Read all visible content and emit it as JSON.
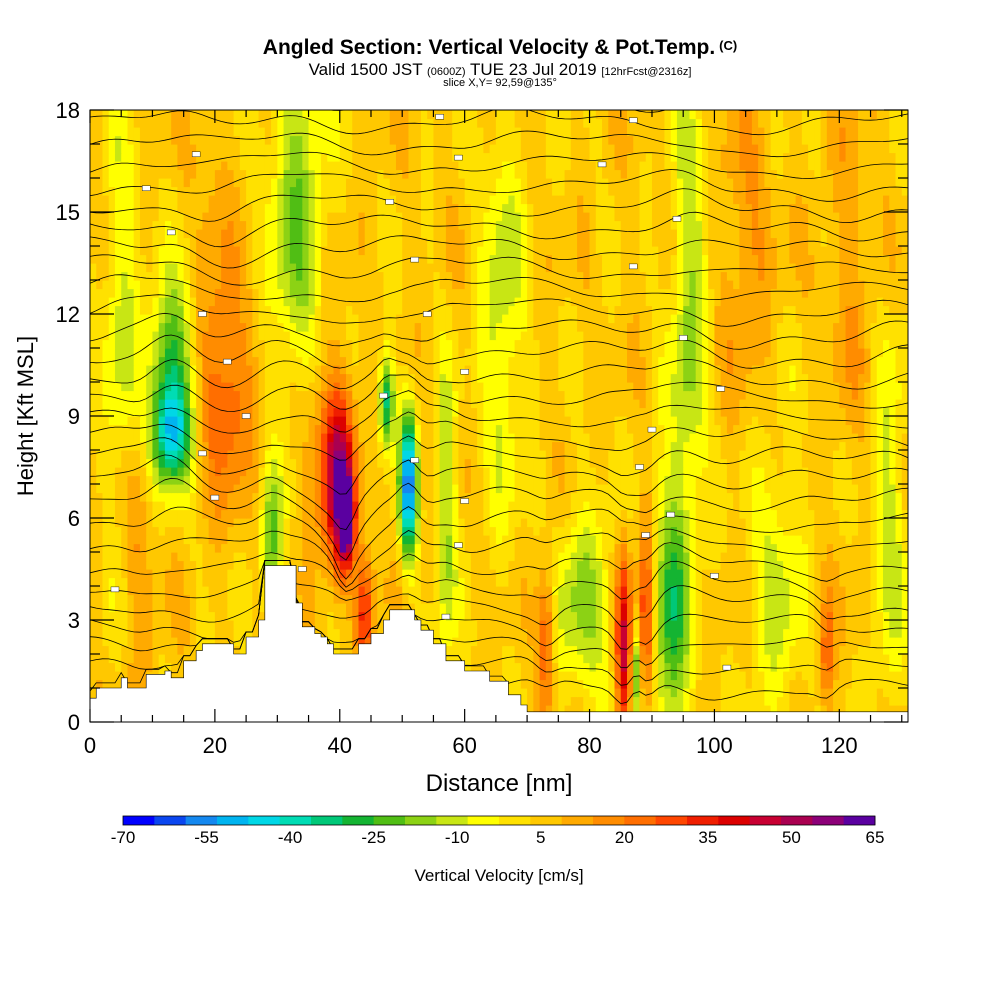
{
  "title": {
    "main": "Angled Section: Vertical Velocity & Pot.Temp.",
    "copyright": "(C)",
    "valid_prefix": "Valid 1500 JST",
    "utc": "(0600Z)",
    "valid_date": "TUE 23 Jul 2019",
    "forecast": "[12hrFcst@2316z]",
    "slice": "slice X,Y= 92,59@135°"
  },
  "colorbar": {
    "label": "Vertical Velocity [cm/s]",
    "ticks": [
      "-70",
      "-55",
      "-40",
      "-25",
      "-10",
      "5",
      "20",
      "35",
      "50",
      "65"
    ],
    "colors": [
      "#0000ff",
      "#0a46f0",
      "#1488f0",
      "#00b4f0",
      "#00d7e6",
      "#00dcb4",
      "#00c878",
      "#14b432",
      "#50be14",
      "#8cd214",
      "#c8e614",
      "#ffff00",
      "#ffe100",
      "#ffc800",
      "#ffaa00",
      "#ff8c00",
      "#ff6e00",
      "#ff4600",
      "#f01e00",
      "#dc0000",
      "#c80032",
      "#aa0050",
      "#8c0078",
      "#5a00a0"
    ]
  },
  "chart_data": {
    "type": "heatmap",
    "x_axis": {
      "label": "Distance [nm]",
      "range": [
        0,
        131
      ],
      "ticks": [
        0,
        20,
        40,
        60,
        80,
        100,
        120
      ]
    },
    "y_axis": {
      "label": "Height [Kft MSL]",
      "range": [
        0,
        18
      ],
      "ticks": [
        0,
        3,
        6,
        9,
        12,
        15,
        18
      ]
    },
    "variable": "Vertical Velocity [cm/s]",
    "value_range": [
      -70,
      65
    ],
    "contour_variable": "Pot.Temp.",
    "background_value": 5,
    "features": [
      {
        "x": 13,
        "y": 10.3,
        "sx": 2.5,
        "sy": 1.8,
        "value": -30
      },
      {
        "x": 13,
        "y": 8.4,
        "sx": 2.2,
        "sy": 1.0,
        "value": -30
      },
      {
        "x": 22,
        "y": 9.5,
        "sx": 3.0,
        "sy": 2.0,
        "value": 25
      },
      {
        "x": 20,
        "y": 14.0,
        "sx": 2.0,
        "sy": 3.5,
        "value": 12
      },
      {
        "x": 33,
        "y": 15.0,
        "sx": 3.0,
        "sy": 4.0,
        "value": -18
      },
      {
        "x": 29,
        "y": 5.2,
        "sx": 1.2,
        "sy": 1.5,
        "value": -22
      },
      {
        "x": 40,
        "y": 6.8,
        "sx": 1.6,
        "sy": 1.8,
        "value": 45
      },
      {
        "x": 41,
        "y": 6.0,
        "sx": 0.8,
        "sy": 0.8,
        "value": 60
      },
      {
        "x": 38,
        "y": 8.0,
        "sx": 3.0,
        "sy": 2.0,
        "value": 22
      },
      {
        "x": 44,
        "y": 3.2,
        "sx": 1.0,
        "sy": 1.2,
        "value": 35
      },
      {
        "x": 47.5,
        "y": 9.5,
        "sx": 0.9,
        "sy": 1.0,
        "value": -35
      },
      {
        "x": 51,
        "y": 7.0,
        "sx": 1.0,
        "sy": 1.5,
        "value": -55
      },
      {
        "x": 57,
        "y": 6.0,
        "sx": 1.2,
        "sy": 3.0,
        "value": -15
      },
      {
        "x": 73,
        "y": 2.5,
        "sx": 1.0,
        "sy": 1.6,
        "value": 30
      },
      {
        "x": 79,
        "y": 3.5,
        "sx": 3.5,
        "sy": 2.0,
        "value": -15
      },
      {
        "x": 85.5,
        "y": 2.2,
        "sx": 0.9,
        "sy": 2.0,
        "value": 45
      },
      {
        "x": 87.5,
        "y": 1.5,
        "sx": 0.6,
        "sy": 1.0,
        "value": -22
      },
      {
        "x": 89,
        "y": 3.0,
        "sx": 0.9,
        "sy": 2.0,
        "value": 35
      },
      {
        "x": 93,
        "y": 3.0,
        "sx": 2.0,
        "sy": 3.0,
        "value": -25
      },
      {
        "x": 96,
        "y": 12.0,
        "sx": 2.0,
        "sy": 5.0,
        "value": -15
      },
      {
        "x": 110,
        "y": 4.0,
        "sx": 3.0,
        "sy": 3.0,
        "value": -10
      },
      {
        "x": 105,
        "y": 14.0,
        "sx": 3.0,
        "sy": 3.0,
        "value": 15
      },
      {
        "x": 122,
        "y": 13.0,
        "sx": 3.0,
        "sy": 4.0,
        "value": 12
      },
      {
        "x": 128,
        "y": 6.0,
        "sx": 2.0,
        "sy": 4.0,
        "value": -10
      },
      {
        "x": 118,
        "y": 2.0,
        "sx": 0.8,
        "sy": 1.2,
        "value": 25
      },
      {
        "x": 66,
        "y": 12.0,
        "sx": 2.5,
        "sy": 4.0,
        "value": -12
      },
      {
        "x": 8,
        "y": 5.0,
        "sx": 1.5,
        "sy": 3.0,
        "value": 15
      },
      {
        "x": 5,
        "y": 12.0,
        "sx": 2.0,
        "sy": 4.0,
        "value": -10
      }
    ],
    "terrain_kft": [
      [
        0,
        0.7
      ],
      [
        1,
        1.0
      ],
      [
        5,
        1.3
      ],
      [
        6,
        1.0
      ],
      [
        9,
        1.4
      ],
      [
        12,
        1.5
      ],
      [
        13,
        1.3
      ],
      [
        15,
        1.8
      ],
      [
        17,
        2.1
      ],
      [
        18,
        2.3
      ],
      [
        22,
        2.3
      ],
      [
        23,
        2.0
      ],
      [
        25,
        2.5
      ],
      [
        27,
        3.0
      ],
      [
        28,
        4.6
      ],
      [
        31,
        4.6
      ],
      [
        33,
        3.5
      ],
      [
        34,
        2.8
      ],
      [
        36,
        2.6
      ],
      [
        37,
        2.5
      ],
      [
        38,
        2.3
      ],
      [
        39,
        2.0
      ],
      [
        42,
        2.0
      ],
      [
        43,
        2.3
      ],
      [
        45,
        2.6
      ],
      [
        47,
        3.0
      ],
      [
        48,
        3.3
      ],
      [
        51,
        3.3
      ],
      [
        52,
        3.0
      ],
      [
        53,
        2.7
      ],
      [
        55,
        2.3
      ],
      [
        57,
        1.8
      ],
      [
        60,
        1.5
      ],
      [
        64,
        1.2
      ],
      [
        67,
        0.8
      ],
      [
        69,
        0.5
      ],
      [
        70,
        0.3
      ],
      [
        131,
        0.3
      ]
    ],
    "theta_contours": 29,
    "theta_label_positions": [
      [
        56,
        17.8
      ],
      [
        87,
        17.7
      ],
      [
        17,
        16.7
      ],
      [
        59,
        16.6
      ],
      [
        82,
        16.4
      ],
      [
        9,
        15.7
      ],
      [
        48,
        15.3
      ],
      [
        94,
        14.8
      ],
      [
        13,
        14.4
      ],
      [
        52,
        13.6
      ],
      [
        87,
        13.4
      ],
      [
        18,
        12.0
      ],
      [
        54,
        12.0
      ],
      [
        95,
        11.3
      ],
      [
        22,
        10.6
      ],
      [
        60,
        10.3
      ],
      [
        101,
        9.8
      ],
      [
        25,
        9.0
      ],
      [
        47,
        9.6
      ],
      [
        90,
        8.6
      ],
      [
        18,
        7.9
      ],
      [
        52,
        7.7
      ],
      [
        88,
        7.5
      ],
      [
        20,
        6.6
      ],
      [
        60,
        6.5
      ],
      [
        93,
        6.1
      ],
      [
        89,
        5.5
      ],
      [
        59,
        5.2
      ],
      [
        34,
        4.5
      ],
      [
        100,
        4.3
      ],
      [
        4,
        3.9
      ],
      [
        57,
        3.1
      ],
      [
        102,
        1.6
      ]
    ]
  }
}
